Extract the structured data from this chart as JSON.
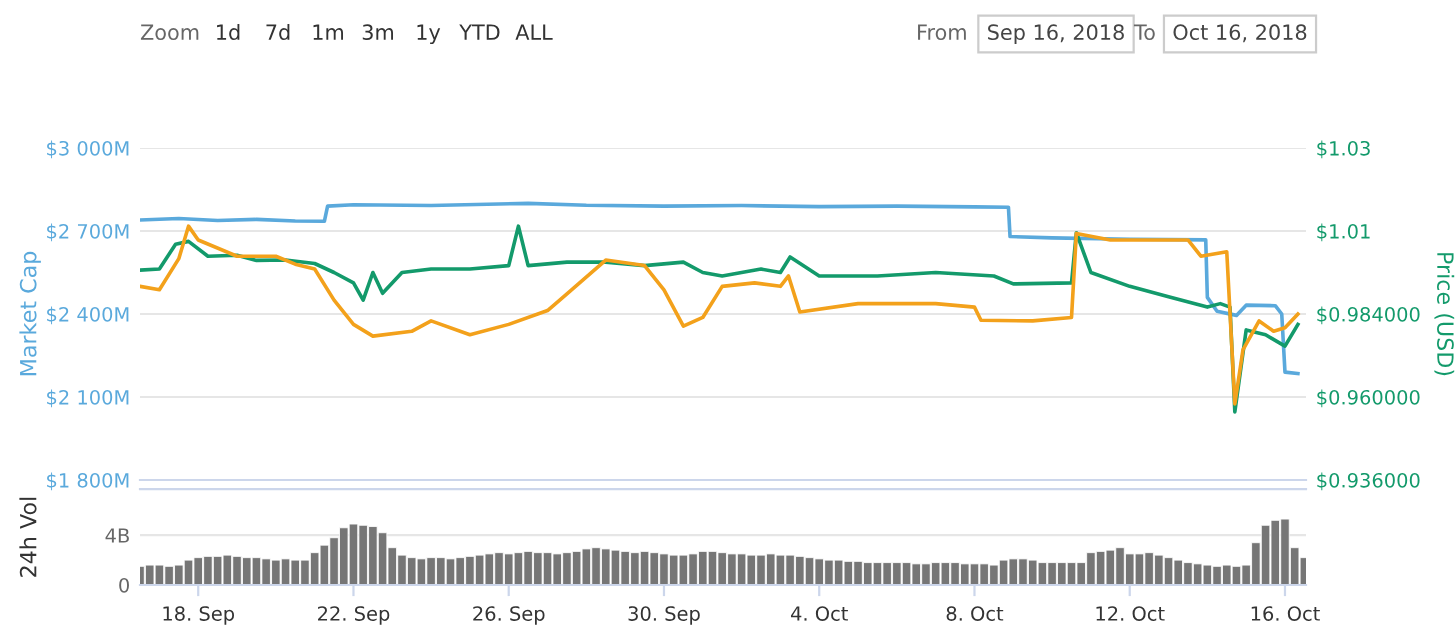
{
  "chart_data": [
    {
      "type": "line",
      "ylabel": "Market Cap",
      "y2label": "Price (USD)",
      "annotations": [
        "Zoom",
        "1d",
        "7d",
        "1m",
        "3m",
        "1y",
        "YTD",
        "ALL",
        "From",
        "Sep 16, 2018",
        "To",
        "Oct 16, 2018"
      ],
      "xlim": [
        "2018-09-16T12:00",
        "2018-10-16T13:00"
      ],
      "ylim": [
        1800,
        3000
      ],
      "yticks": [
        {
          "value": 1800,
          "label": "$1 800M"
        },
        {
          "value": 2100,
          "label": "$2 100M"
        },
        {
          "value": 2400,
          "label": "$2 400M"
        },
        {
          "value": 2700,
          "label": "$2 700M"
        },
        {
          "value": 3000,
          "label": "$3 000M"
        }
      ],
      "y2lim": [
        0.936,
        1.032
      ],
      "y2ticks": [
        {
          "value": 0.936,
          "label": "$0.936000"
        },
        {
          "value": 0.96,
          "label": "$0.960000"
        },
        {
          "value": 0.984,
          "label": "$0.984000"
        },
        {
          "value": 1.008,
          "label": "$1.01"
        },
        {
          "value": 1.032,
          "label": "$1.03"
        }
      ],
      "tick_labels": "y",
      "grid": "y",
      "line_style": "solid",
      "marker": "none",
      "series": [
        {
          "color": "#5aa9dc",
          "x": [
            "2018-09-16T12:00",
            "2018-09-17T12:00",
            "2018-09-18T12:00",
            "2018-09-19T12:00",
            "2018-09-20T12:00",
            "2018-09-21T06:00",
            "2018-09-21T08:00",
            "2018-09-22T00:00",
            "2018-09-24T00:00",
            "2018-09-26T12:00",
            "2018-09-28T00:00",
            "2018-09-30T00:00",
            "2018-10-02T00:00",
            "2018-10-04T00:00",
            "2018-10-06T00:00",
            "2018-10-08T00:00",
            "2018-10-08T21:00",
            "2018-10-08T22:00",
            "2018-10-10T00:00",
            "2018-10-12T00:00",
            "2018-10-13T23:00",
            "2018-10-14T00:00",
            "2018-10-14T06:00",
            "2018-10-14T18:00",
            "2018-10-15T00:00",
            "2018-10-15T18:00",
            "2018-10-15T22:00",
            "2018-10-16T00:00",
            "2018-10-16T08:00"
          ],
          "values": [
            2740,
            2745,
            2738,
            2742,
            2736,
            2735,
            2790,
            2795,
            2792,
            2800,
            2793,
            2790,
            2792,
            2788,
            2790,
            2787,
            2786,
            2680,
            2675,
            2670,
            2668,
            2460,
            2410,
            2395,
            2432,
            2430,
            2400,
            2190,
            2185
          ]
        },
        {
          "color": "#139a6b",
          "axis": "y2",
          "x": [
            "2018-09-16T12:00",
            "2018-09-17T00:00",
            "2018-09-17T10:00",
            "2018-09-17T18:00",
            "2018-09-18T06:00",
            "2018-09-19T00:00",
            "2018-09-19T12:00",
            "2018-09-20T06:00",
            "2018-09-21T00:00",
            "2018-09-21T12:00",
            "2018-09-22T00:00",
            "2018-09-22T06:00",
            "2018-09-22T12:00",
            "2018-09-22T18:00",
            "2018-09-23T06:00",
            "2018-09-24T00:00",
            "2018-09-25T00:00",
            "2018-09-26T00:00",
            "2018-09-26T06:00",
            "2018-09-26T12:00",
            "2018-09-27T12:00",
            "2018-09-28T12:00",
            "2018-09-29T12:00",
            "2018-09-30T12:00",
            "2018-10-01T00:00",
            "2018-10-01T12:00",
            "2018-10-02T12:00",
            "2018-10-03T00:00",
            "2018-10-03T06:00",
            "2018-10-04T00:00",
            "2018-10-05T12:00",
            "2018-10-07T00:00",
            "2018-10-08T12:00",
            "2018-10-09T00:00",
            "2018-10-10T12:00",
            "2018-10-10T15:00",
            "2018-10-11T00:00",
            "2018-10-12T00:00",
            "2018-10-13T00:00",
            "2018-10-14T00:00",
            "2018-10-14T08:00",
            "2018-10-14T14:00",
            "2018-10-14T17:00",
            "2018-10-15T00:00",
            "2018-10-15T12:00",
            "2018-10-16T00:00",
            "2018-10-16T08:00"
          ],
          "values": [
            0.9967,
            0.997,
            1.0042,
            1.005,
            1.0007,
            1.001,
            0.9995,
            0.9996,
            0.9986,
            0.996,
            0.993,
            0.988,
            0.996,
            0.99,
            0.996,
            0.997,
            0.997,
            0.998,
            1.0094,
            0.998,
            0.999,
            0.999,
            0.998,
            0.999,
            0.996,
            0.995,
            0.997,
            0.996,
            1.0005,
            0.995,
            0.995,
            0.996,
            0.995,
            0.9927,
            0.993,
            1.0075,
            0.996,
            0.992,
            0.989,
            0.986,
            0.987,
            0.986,
            0.9557,
            0.9794,
            0.978,
            0.9747,
            0.981
          ]
        },
        {
          "color": "#f3a11b",
          "axis": "y2",
          "x": [
            "2018-09-16T12:00",
            "2018-09-17T00:00",
            "2018-09-17T12:00",
            "2018-09-17T18:00",
            "2018-09-18T00:00",
            "2018-09-19T00:00",
            "2018-09-20T00:00",
            "2018-09-20T12:00",
            "2018-09-21T00:00",
            "2018-09-21T12:00",
            "2018-09-22T00:00",
            "2018-09-22T12:00",
            "2018-09-23T12:00",
            "2018-09-24T00:00",
            "2018-09-25T00:00",
            "2018-09-26T00:00",
            "2018-09-27T00:00",
            "2018-09-27T12:00",
            "2018-09-28T12:00",
            "2018-09-29T12:00",
            "2018-09-30T00:00",
            "2018-09-30T12:00",
            "2018-10-01T00:00",
            "2018-10-01T12:00",
            "2018-10-02T08:00",
            "2018-10-03T00:00",
            "2018-10-03T05:00",
            "2018-10-03T12:00",
            "2018-10-05T00:00",
            "2018-10-07T00:00",
            "2018-10-08T00:00",
            "2018-10-08T04:00",
            "2018-10-09T12:00",
            "2018-10-10T12:00",
            "2018-10-10T15:00",
            "2018-10-11T12:00",
            "2018-10-13T12:00",
            "2018-10-13T20:00",
            "2018-10-14T12:00",
            "2018-10-14T17:00",
            "2018-10-14T22:00",
            "2018-10-15T08:00",
            "2018-10-15T17:00",
            "2018-10-16T00:00",
            "2018-10-16T08:00"
          ],
          "values": [
            0.992,
            0.991,
            1.0,
            1.0094,
            1.0054,
            1.0007,
            1.0007,
            0.9984,
            0.997,
            0.988,
            0.981,
            0.9776,
            0.979,
            0.982,
            0.978,
            0.981,
            0.985,
            0.9898,
            0.9996,
            0.998,
            0.991,
            0.9805,
            0.983,
            0.992,
            0.993,
            0.992,
            0.995,
            0.9846,
            0.987,
            0.987,
            0.986,
            0.9822,
            0.982,
            0.983,
            1.0073,
            1.0054,
            1.0054,
            1.0007,
            1.002,
            0.958,
            0.9736,
            0.982,
            0.979,
            0.98,
            0.984
          ]
        }
      ]
    },
    {
      "type": "bar",
      "ylabel": "24h Vol",
      "xlim": [
        "2018-09-16T12:00",
        "2018-10-16T13:00"
      ],
      "ylim": [
        0,
        7.7
      ],
      "yticks": [
        0,
        {
          "value": 4,
          "label": "4B"
        }
      ],
      "grid": "y",
      "color": "#767676",
      "xticks": [
        {
          "value": "2018-09-18",
          "label": "18. Sep"
        },
        {
          "value": "2018-09-22",
          "label": "22. Sep"
        },
        {
          "value": "2018-09-26",
          "label": "26. Sep"
        },
        {
          "value": "2018-09-30",
          "label": "30. Sep"
        },
        {
          "value": "2018-10-04",
          "label": "4. Oct"
        },
        {
          "value": "2018-10-08",
          "label": "8. Oct"
        },
        {
          "value": "2018-10-12",
          "label": "12. Oct"
        },
        {
          "value": "2018-10-16",
          "label": "16. Oct"
        }
      ],
      "x": [
        "2018-09-16T12:00",
        "2018-09-16T18:00",
        "2018-09-17T00:00",
        "2018-09-17T06:00",
        "2018-09-17T12:00",
        "2018-09-17T18:00",
        "2018-09-18T00:00",
        "2018-09-18T06:00",
        "2018-09-18T12:00",
        "2018-09-18T18:00",
        "2018-09-19T00:00",
        "2018-09-19T06:00",
        "2018-09-19T12:00",
        "2018-09-19T18:00",
        "2018-09-20T00:00",
        "2018-09-20T06:00",
        "2018-09-20T12:00",
        "2018-09-20T18:00",
        "2018-09-21T00:00",
        "2018-09-21T06:00",
        "2018-09-21T12:00",
        "2018-09-21T18:00",
        "2018-09-22T00:00",
        "2018-09-22T06:00",
        "2018-09-22T12:00",
        "2018-09-22T18:00",
        "2018-09-23T00:00",
        "2018-09-23T06:00",
        "2018-09-23T12:00",
        "2018-09-23T18:00",
        "2018-09-24T00:00",
        "2018-09-24T06:00",
        "2018-09-24T12:00",
        "2018-09-24T18:00",
        "2018-09-25T00:00",
        "2018-09-25T06:00",
        "2018-09-25T12:00",
        "2018-09-25T18:00",
        "2018-09-26T00:00",
        "2018-09-26T06:00",
        "2018-09-26T12:00",
        "2018-09-26T18:00",
        "2018-09-27T00:00",
        "2018-09-27T06:00",
        "2018-09-27T12:00",
        "2018-09-27T18:00",
        "2018-09-28T00:00",
        "2018-09-28T06:00",
        "2018-09-28T12:00",
        "2018-09-28T18:00",
        "2018-09-29T00:00",
        "2018-09-29T06:00",
        "2018-09-29T12:00",
        "2018-09-29T18:00",
        "2018-09-30T00:00",
        "2018-09-30T06:00",
        "2018-09-30T12:00",
        "2018-09-30T18:00",
        "2018-10-01T00:00",
        "2018-10-01T06:00",
        "2018-10-01T12:00",
        "2018-10-01T18:00",
        "2018-10-02T00:00",
        "2018-10-02T06:00",
        "2018-10-02T12:00",
        "2018-10-02T18:00",
        "2018-10-03T00:00",
        "2018-10-03T06:00",
        "2018-10-03T12:00",
        "2018-10-03T18:00",
        "2018-10-04T00:00",
        "2018-10-04T06:00",
        "2018-10-04T12:00",
        "2018-10-04T18:00",
        "2018-10-05T00:00",
        "2018-10-05T06:00",
        "2018-10-05T12:00",
        "2018-10-05T18:00",
        "2018-10-06T00:00",
        "2018-10-06T06:00",
        "2018-10-06T12:00",
        "2018-10-06T18:00",
        "2018-10-07T00:00",
        "2018-10-07T06:00",
        "2018-10-07T12:00",
        "2018-10-07T18:00",
        "2018-10-08T00:00",
        "2018-10-08T06:00",
        "2018-10-08T12:00",
        "2018-10-08T18:00",
        "2018-10-09T00:00",
        "2018-10-09T06:00",
        "2018-10-09T12:00",
        "2018-10-09T18:00",
        "2018-10-10T00:00",
        "2018-10-10T06:00",
        "2018-10-10T12:00",
        "2018-10-10T18:00",
        "2018-10-11T00:00",
        "2018-10-11T06:00",
        "2018-10-11T12:00",
        "2018-10-11T18:00",
        "2018-10-12T00:00",
        "2018-10-12T06:00",
        "2018-10-12T12:00",
        "2018-10-12T18:00",
        "2018-10-13T00:00",
        "2018-10-13T06:00",
        "2018-10-13T12:00",
        "2018-10-13T18:00",
        "2018-10-14T00:00",
        "2018-10-14T06:00",
        "2018-10-14T12:00",
        "2018-10-14T18:00",
        "2018-10-15T00:00",
        "2018-10-15T06:00",
        "2018-10-15T12:00",
        "2018-10-15T18:00",
        "2018-10-16T00:00",
        "2018-10-16T06:00",
        "2018-10-16T12:00"
      ],
      "values": [
        1.5,
        1.6,
        1.6,
        1.5,
        1.6,
        2.0,
        2.2,
        2.3,
        2.3,
        2.4,
        2.3,
        2.2,
        2.2,
        2.1,
        2.0,
        2.1,
        2.0,
        2.0,
        2.6,
        3.2,
        3.8,
        4.6,
        4.9,
        4.8,
        4.7,
        4.2,
        3.0,
        2.4,
        2.2,
        2.1,
        2.2,
        2.2,
        2.1,
        2.2,
        2.3,
        2.4,
        2.5,
        2.6,
        2.5,
        2.6,
        2.7,
        2.6,
        2.6,
        2.5,
        2.6,
        2.7,
        2.9,
        3.0,
        2.9,
        2.8,
        2.7,
        2.6,
        2.7,
        2.6,
        2.5,
        2.4,
        2.4,
        2.5,
        2.7,
        2.7,
        2.6,
        2.5,
        2.5,
        2.4,
        2.4,
        2.5,
        2.4,
        2.4,
        2.3,
        2.2,
        2.1,
        2.0,
        2.0,
        1.9,
        1.9,
        1.8,
        1.8,
        1.8,
        1.8,
        1.8,
        1.7,
        1.7,
        1.8,
        1.8,
        1.8,
        1.7,
        1.7,
        1.7,
        1.6,
        2.0,
        2.1,
        2.1,
        2.0,
        1.8,
        1.8,
        1.8,
        1.8,
        1.8,
        2.6,
        2.7,
        2.8,
        3.0,
        2.5,
        2.5,
        2.6,
        2.4,
        2.2,
        2.0,
        1.8,
        1.7,
        1.6,
        1.5,
        1.6,
        1.5,
        1.6,
        3.4,
        4.8,
        5.2,
        5.3,
        3.0,
        2.2
      ]
    }
  ]
}
